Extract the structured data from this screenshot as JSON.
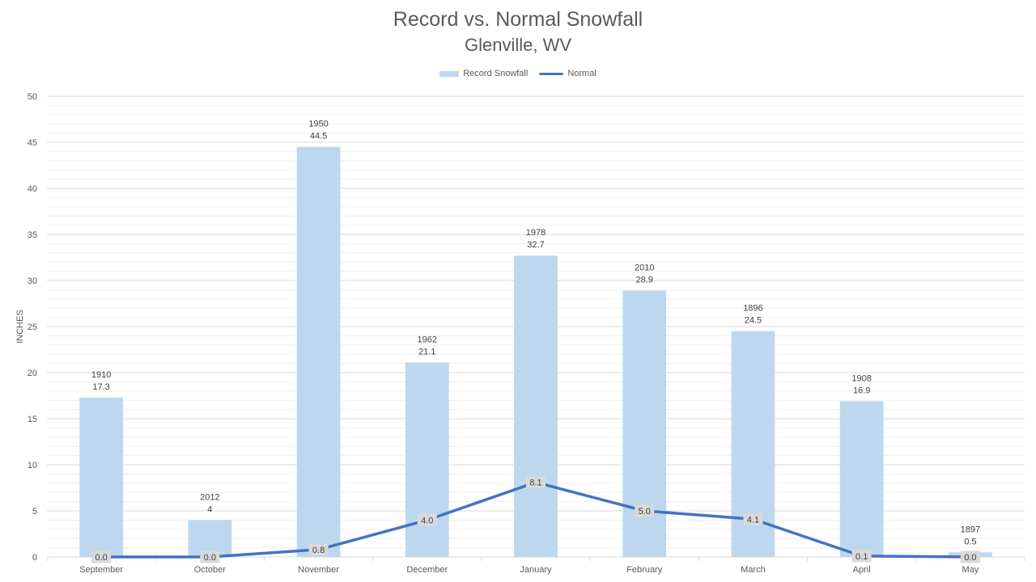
{
  "chart_data": {
    "type": "bar",
    "title": "Record vs. Normal Snowfall",
    "subtitle": "Glenville, WV",
    "ylabel": "INCHES",
    "xlabel": "",
    "ylim": [
      0,
      50
    ],
    "yticks": [
      0,
      5,
      10,
      15,
      20,
      25,
      30,
      35,
      40,
      45,
      50
    ],
    "grid": true,
    "legend_position": "top",
    "categories": [
      "September",
      "October",
      "November",
      "December",
      "January",
      "February",
      "March",
      "April",
      "May"
    ],
    "series": [
      {
        "name": "Record Snowfall",
        "type": "bar",
        "color": "#bdd7ee",
        "values": [
          17.3,
          4,
          44.5,
          21.1,
          32.7,
          28.9,
          24.5,
          16.9,
          0.5
        ],
        "years": [
          "1910",
          "2012",
          "1950",
          "1962",
          "1978",
          "2010",
          "1896",
          "1908",
          "1897"
        ],
        "value_labels": [
          "17.3",
          "4",
          "44.5",
          "21.1",
          "32.7",
          "28.9",
          "24.5",
          "16.9",
          "0.5"
        ]
      },
      {
        "name": "Normal",
        "type": "line",
        "color": "#4472c4",
        "values": [
          0.0,
          0.0,
          0.8,
          4.0,
          8.1,
          5.0,
          4.1,
          0.1,
          0.0
        ],
        "value_labels": [
          "0.0",
          "0.0",
          "0.8",
          "4.0",
          "8.1",
          "5.0",
          "4.1",
          "0.1",
          "0.0"
        ]
      }
    ]
  }
}
